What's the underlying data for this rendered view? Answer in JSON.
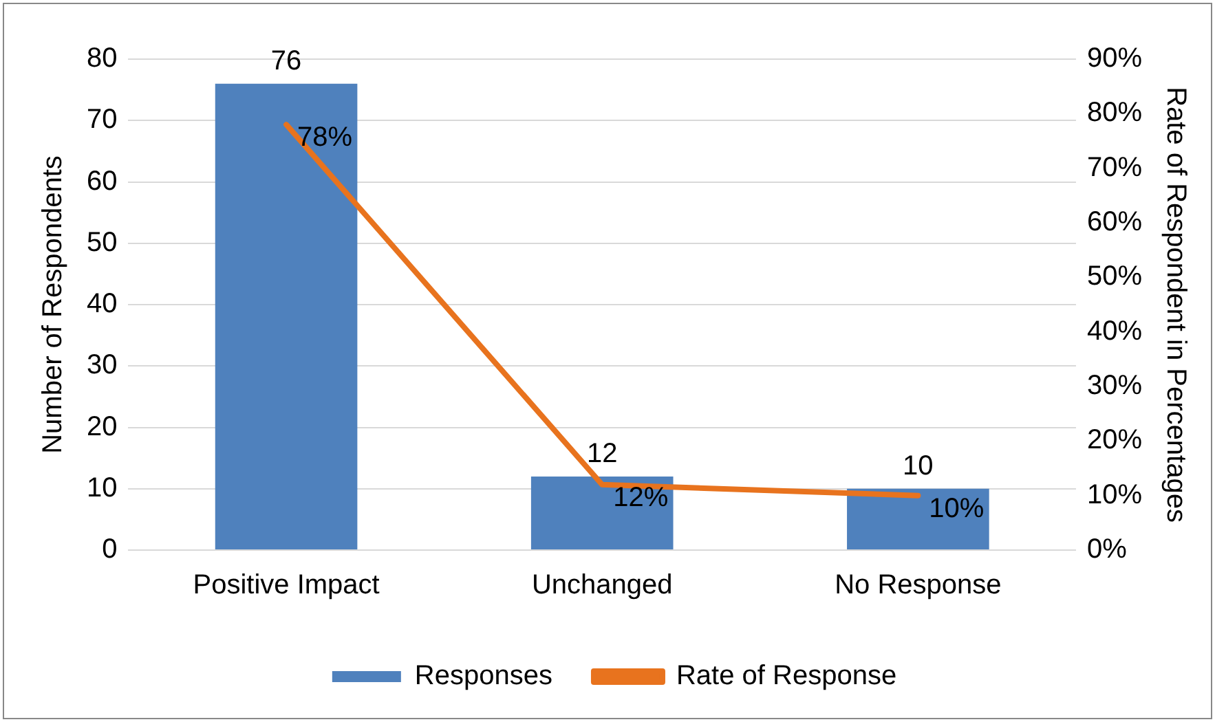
{
  "chart_data": {
    "type": "bar",
    "categories": [
      "Positive Impact",
      "Unchanged",
      "No Response"
    ],
    "series": [
      {
        "name": "Responses",
        "color": "#4f81bd",
        "values": [
          76,
          12,
          10
        ],
        "value_labels": [
          "76",
          "12",
          "10"
        ]
      },
      {
        "name": "Rate of Response",
        "type": "line",
        "axis": "y2",
        "color": "#e8731e",
        "values": [
          78,
          12,
          10
        ],
        "value_labels": [
          "78%",
          "12%",
          "10%"
        ]
      }
    ],
    "ylabel": "Number of Respondents",
    "y2label": "Rate of Respondent in Percentages",
    "ylim": [
      0,
      80
    ],
    "yticks": [
      0,
      10,
      20,
      30,
      40,
      50,
      60,
      70,
      80
    ],
    "y2lim": [
      0,
      90
    ],
    "y2ticks": [
      {
        "value": 0,
        "label": "0%"
      },
      {
        "value": 10,
        "label": "10%"
      },
      {
        "value": 20,
        "label": "20%"
      },
      {
        "value": 30,
        "label": "30%"
      },
      {
        "value": 40,
        "label": "40%"
      },
      {
        "value": 50,
        "label": "50%"
      },
      {
        "value": 60,
        "label": "60%"
      },
      {
        "value": 70,
        "label": "70%"
      },
      {
        "value": 80,
        "label": "80%"
      },
      {
        "value": 90,
        "label": "90%"
      }
    ],
    "grid": "y",
    "legend": "bottom",
    "marker": "none",
    "line_style": "solid"
  }
}
